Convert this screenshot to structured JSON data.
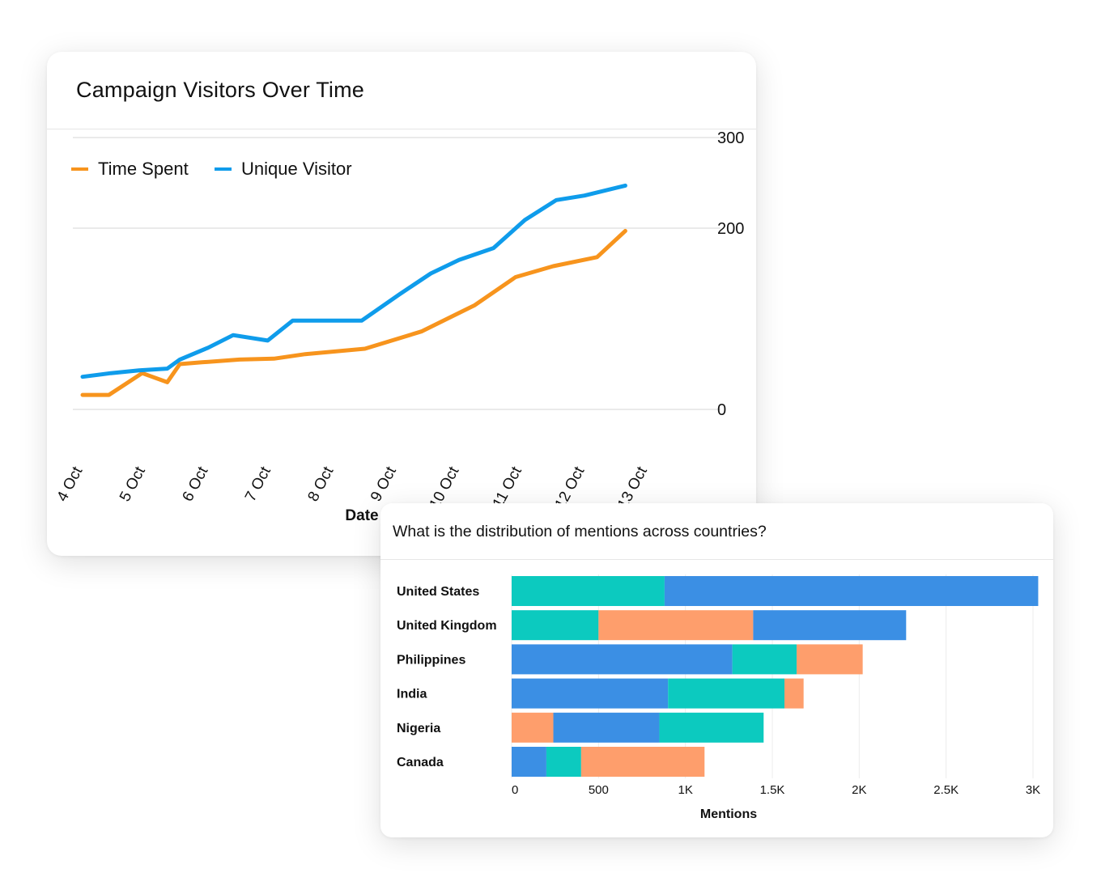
{
  "line_card": {
    "title": "Campaign Visitors Over Time"
  },
  "bar_card": {
    "title": "What is the distribution of mentions across countries?"
  },
  "colors": {
    "time_spent": "#f7941d",
    "unique_visitor": "#0f9ceb",
    "gridline": "#e3e3e3",
    "bar_blue": "#3b8fe4",
    "bar_teal": "#0ccabf",
    "bar_orange": "#fe9e6c"
  },
  "chart_data": [
    {
      "type": "line",
      "title": "Campaign Visitors Over Time",
      "xlabel": "Date",
      "ylabel": "",
      "categories": [
        "4 Oct",
        "5 Oct",
        "6 Oct",
        "7 Oct",
        "8 Oct",
        "9 Oct",
        "10 Oct",
        "11 Oct",
        "12 Oct",
        "13 Oct"
      ],
      "y_ticks": [
        0,
        200,
        300
      ],
      "legend_position": "top-left",
      "y_axis_position": "right",
      "grid": true,
      "series": [
        {
          "name": "Time Spent",
          "x": [
            4.0,
            4.42,
            4.95,
            5.35,
            5.55,
            5.9,
            6.5,
            7.05,
            7.55,
            8.5,
            9.4,
            10.25,
            10.9,
            11.5,
            12.2,
            12.65
          ],
          "values": [
            16,
            16,
            40,
            30,
            50,
            52,
            55,
            56,
            61,
            67,
            86,
            115,
            146,
            158,
            168,
            197
          ]
        },
        {
          "name": "Unique Visitor",
          "x": [
            4.0,
            4.45,
            4.9,
            5.35,
            5.55,
            6.0,
            6.4,
            6.95,
            7.35,
            7.8,
            8.45,
            9.05,
            9.55,
            10.0,
            10.55,
            11.05,
            11.55,
            12.0,
            12.65
          ],
          "values": [
            36,
            40,
            43,
            45,
            55,
            68,
            82,
            76,
            98,
            98,
            98,
            127,
            150,
            165,
            178,
            209,
            231,
            236,
            247
          ]
        }
      ]
    },
    {
      "type": "bar",
      "orientation": "horizontal",
      "stacked": true,
      "title": "What is the distribution of mentions across countries?",
      "xlabel": "Mentions",
      "ylabel": "",
      "categories": [
        "United States",
        "United Kingdom",
        "Philippines",
        "India",
        "Nigeria",
        "Canada"
      ],
      "x_ticks": [
        {
          "value": 0,
          "label": "0"
        },
        {
          "value": 500,
          "label": "500"
        },
        {
          "value": 1000,
          "label": "1K"
        },
        {
          "value": 1500,
          "label": "1.5K"
        },
        {
          "value": 2000,
          "label": "2K"
        },
        {
          "value": 2500,
          "label": "2.5K"
        },
        {
          "value": 3000,
          "label": "3K"
        }
      ],
      "xlim": [
        0,
        3000
      ],
      "grid": true,
      "rows": [
        {
          "segments": [
            {
              "color": "teal",
              "value": 880
            },
            {
              "color": "blue",
              "value": 2150
            }
          ]
        },
        {
          "segments": [
            {
              "color": "teal",
              "value": 500
            },
            {
              "color": "orange",
              "value": 890
            },
            {
              "color": "blue",
              "value": 880
            }
          ]
        },
        {
          "segments": [
            {
              "color": "blue",
              "value": 1270
            },
            {
              "color": "teal",
              "value": 370
            },
            {
              "color": "orange",
              "value": 380
            }
          ]
        },
        {
          "segments": [
            {
              "color": "blue",
              "value": 900
            },
            {
              "color": "teal",
              "value": 670
            },
            {
              "color": "orange",
              "value": 110
            }
          ]
        },
        {
          "segments": [
            {
              "color": "orange",
              "value": 240
            },
            {
              "color": "blue",
              "value": 610
            },
            {
              "color": "teal",
              "value": 600
            }
          ]
        },
        {
          "segments": [
            {
              "color": "blue",
              "value": 200
            },
            {
              "color": "teal",
              "value": 200
            },
            {
              "color": "orange",
              "value": 710
            }
          ]
        }
      ]
    }
  ]
}
